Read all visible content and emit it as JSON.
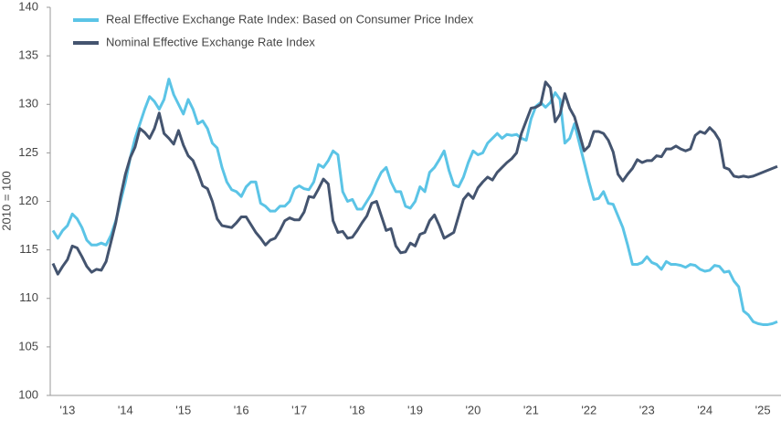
{
  "chart_data": {
    "type": "line",
    "y_label": "2010 = 100",
    "categories": [
      null,
      null,
      null,
      "'13",
      null,
      null,
      null,
      null,
      null,
      null,
      null,
      null,
      null,
      null,
      null,
      "'14",
      null,
      null,
      null,
      null,
      null,
      null,
      null,
      null,
      null,
      null,
      null,
      "'15",
      null,
      null,
      null,
      null,
      null,
      null,
      null,
      null,
      null,
      null,
      null,
      "'16",
      null,
      null,
      null,
      null,
      null,
      null,
      null,
      null,
      null,
      null,
      null,
      "'17",
      null,
      null,
      null,
      null,
      null,
      null,
      null,
      null,
      null,
      null,
      null,
      "'18",
      null,
      null,
      null,
      null,
      null,
      null,
      null,
      null,
      null,
      null,
      null,
      "'19",
      null,
      null,
      null,
      null,
      null,
      null,
      null,
      null,
      null,
      null,
      null,
      "'20",
      null,
      null,
      null,
      null,
      null,
      null,
      null,
      null,
      null,
      null,
      null,
      "'21",
      null,
      null,
      null,
      null,
      null,
      null,
      null,
      null,
      null,
      null,
      null,
      "'22",
      null,
      null,
      null,
      null,
      null,
      null,
      null,
      null,
      null,
      null,
      null,
      "'23",
      null,
      null,
      null,
      null,
      null,
      null,
      null,
      null,
      null,
      null,
      null,
      "'24",
      null,
      null,
      null,
      null,
      null,
      null,
      null,
      null,
      null,
      null,
      null,
      "'25",
      null,
      null,
      null
    ],
    "series": [
      {
        "name": "Real Effective Exchange Rate Index: Based on Consumer Price Index",
        "color": "#5bc4e6",
        "values": [
          117,
          116.2,
          117,
          117.5,
          118.7,
          118.2,
          117.3,
          116,
          115.5,
          115.5,
          115.7,
          115.5,
          116.5,
          118,
          120,
          122,
          124.5,
          126.5,
          128,
          129.5,
          130.8,
          130.3,
          129.5,
          130.5,
          132.6,
          131,
          130,
          129,
          130.5,
          129.5,
          128,
          128.3,
          127.5,
          126,
          125.5,
          123.5,
          122,
          121.2,
          121,
          120.5,
          121.5,
          122,
          122,
          119.8,
          119.5,
          119,
          119,
          119.5,
          119.5,
          120,
          121.3,
          121.6,
          121.3,
          121.2,
          122,
          123.8,
          123.5,
          124.2,
          125.2,
          124.8,
          121,
          120,
          120.2,
          119.2,
          119.2,
          120,
          120.8,
          122,
          123,
          123.5,
          122,
          121,
          121,
          119.5,
          119.3,
          120,
          121.5,
          121,
          123,
          123.5,
          124.3,
          125.2,
          123.2,
          121.7,
          121.5,
          122.5,
          124,
          125.2,
          124.8,
          125,
          126,
          126.5,
          127,
          126.5,
          126.9,
          126.8,
          126.9,
          126.5,
          126.3,
          128.5,
          129.8,
          130.2,
          129.7,
          130.2,
          131.2,
          130.5,
          126,
          126.5,
          128,
          126,
          124,
          122,
          120.2,
          120.3,
          121,
          119.8,
          119.7,
          118.5,
          117.3,
          115.5,
          113.5,
          113.5,
          113.7,
          114.3,
          113.7,
          113.5,
          113,
          113.8,
          113.5,
          113.5,
          113.4,
          113.2,
          113.5,
          113.4,
          113,
          112.8,
          112.9,
          113.4,
          113.3,
          112.7,
          112.8,
          111.8,
          111.2,
          108.7,
          108.3,
          107.6,
          107.4,
          107.3,
          107.3,
          107.4,
          107.6
        ]
      },
      {
        "name": "Nominal Effective Exchange Rate Index",
        "color": "#44546f",
        "values": [
          113.6,
          112.5,
          113.3,
          114,
          115.4,
          115.2,
          114.3,
          113.3,
          112.7,
          113,
          112.9,
          113.8,
          115.8,
          117.8,
          120.5,
          122.8,
          124.5,
          125.6,
          127.5,
          127.1,
          126.5,
          127.5,
          129.1,
          127,
          126.5,
          125.9,
          127.3,
          125.8,
          124.7,
          124.2,
          123,
          121.6,
          121.3,
          120,
          118.2,
          117.5,
          117.4,
          117.3,
          117.8,
          118.4,
          118.4,
          117.6,
          116.8,
          116.2,
          115.5,
          116,
          116.2,
          117,
          118,
          118.3,
          118.1,
          118.1,
          118.9,
          120.5,
          120.4,
          121.3,
          122.3,
          121.8,
          118,
          116.8,
          116.9,
          116.2,
          116.3,
          117,
          117.8,
          118.5,
          119.8,
          120,
          118.5,
          117,
          117.2,
          115.4,
          114.7,
          114.8,
          115.7,
          115.4,
          116.6,
          116.8,
          118,
          118.6,
          117.5,
          116.2,
          116.5,
          116.8,
          118.5,
          120.2,
          120.8,
          120.3,
          121.4,
          122,
          122.5,
          122.2,
          123,
          123.5,
          124,
          124.4,
          125,
          127,
          128.3,
          129.6,
          129.7,
          130,
          132.3,
          131.7,
          128.2,
          129,
          131.1,
          129.6,
          128.7,
          127,
          125.2,
          125.7,
          127.2,
          127.2,
          127,
          126.3,
          125.1,
          122.8,
          122.1,
          122.8,
          123.4,
          124.3,
          124,
          124.2,
          124.2,
          124.7,
          124.6,
          125.4,
          125.4,
          125.7,
          125.4,
          125.2,
          125.4,
          126.8,
          127.2,
          127,
          127.6,
          127.1,
          126.3,
          123.5,
          123.3,
          122.6,
          122.5,
          122.6,
          122.5,
          122.6,
          122.8,
          123,
          123.2,
          123.4,
          123.6
        ]
      }
    ],
    "ylim": [
      100,
      140
    ],
    "yticks": [
      100,
      105,
      110,
      115,
      120,
      125,
      130,
      135,
      140
    ],
    "grid": false,
    "legend": "top-left"
  }
}
